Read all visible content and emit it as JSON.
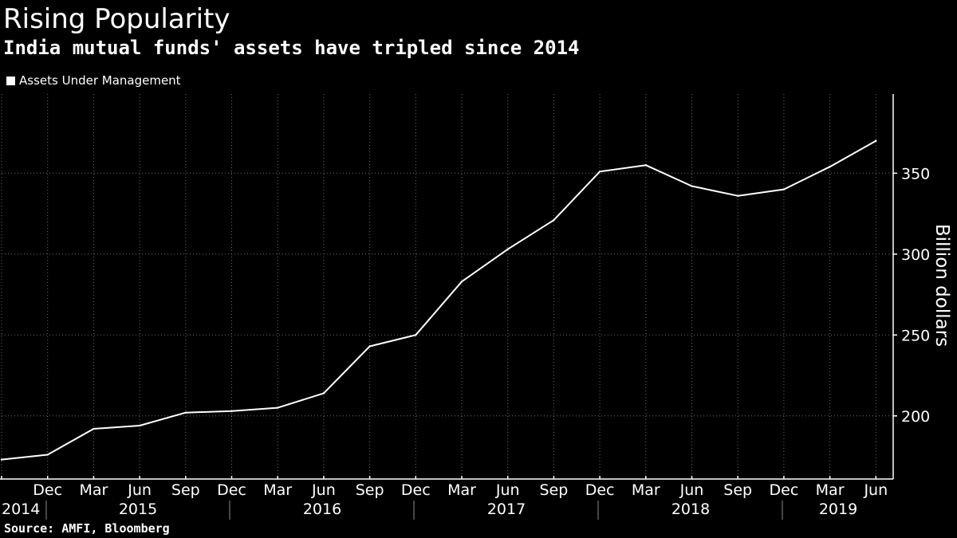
{
  "title": "Rising Popularity",
  "subtitle": "India mutual funds' assets have tripled since 2014",
  "source": "Source: AMFI, Bloomberg",
  "colors": {
    "background": "#000000",
    "line": "#ffffff",
    "grid": "#6e6e6e"
  },
  "chart_data": {
    "type": "line",
    "title": "Rising Popularity",
    "subtitle": "India mutual funds' assets have tripled since 2014",
    "xlabel": "",
    "ylabel": "Billion dollars",
    "ylim": [
      160,
      390
    ],
    "yticks": [
      200,
      250,
      300,
      350
    ],
    "grid": true,
    "legend_position": "top-left",
    "x": [
      "Sep 2014",
      "Dec 2014",
      "Mar 2015",
      "Jun 2015",
      "Sep 2015",
      "Dec 2015",
      "Mar 2016",
      "Jun 2016",
      "Sep 2016",
      "Dec 2016",
      "Mar 2017",
      "Jun 2017",
      "Sep 2017",
      "Dec 2017",
      "Mar 2018",
      "Jun 2018",
      "Sep 2018",
      "Dec 2018",
      "Mar 2019",
      "Jun 2019"
    ],
    "x_tick_labels": [
      "Dec",
      "Mar",
      "Jun",
      "Sep",
      "Dec",
      "Mar",
      "Jun",
      "Sep",
      "Dec",
      "Mar",
      "Jun",
      "Sep",
      "Dec",
      "Mar",
      "Jun",
      "Sep",
      "Dec",
      "Mar",
      "Jun"
    ],
    "year_labels": [
      "2014",
      "2015",
      "2016",
      "2017",
      "2018",
      "2019"
    ],
    "series": [
      {
        "name": "Assets Under Management",
        "values": [
          173,
          176,
          192,
          194,
          202,
          203,
          205,
          214,
          243,
          250,
          283,
          303,
          321,
          351,
          355,
          342,
          336,
          340,
          354,
          370
        ]
      }
    ]
  }
}
